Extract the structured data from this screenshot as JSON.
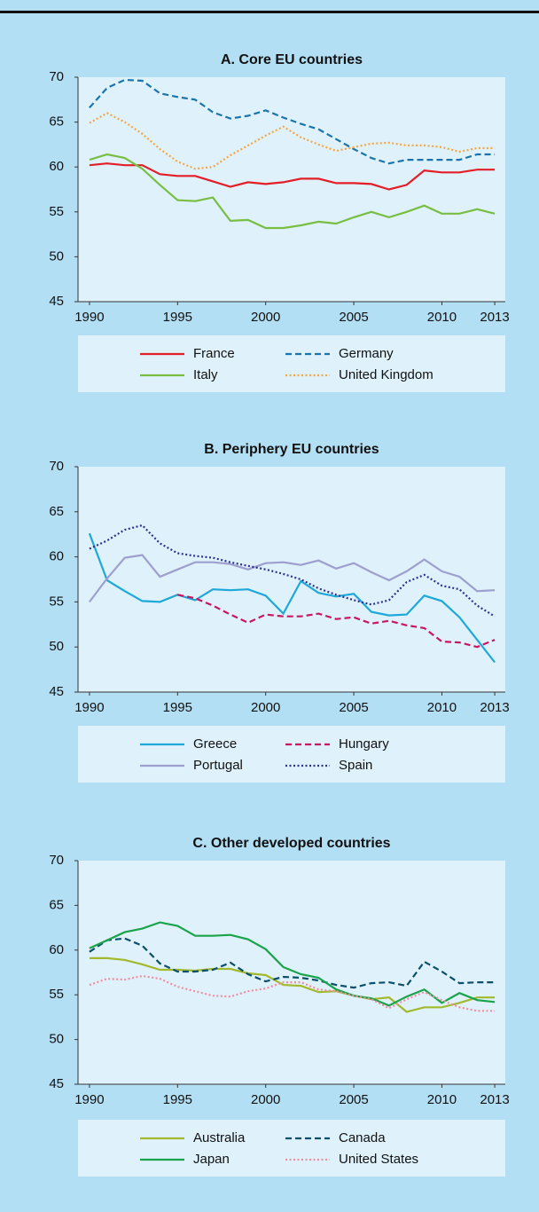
{
  "chart_data": [
    {
      "type": "line",
      "title": "A. Core EU countries",
      "x": [
        1990,
        1991,
        1992,
        1993,
        1994,
        1995,
        1996,
        1997,
        1998,
        1999,
        2000,
        2001,
        2002,
        2003,
        2004,
        2005,
        2006,
        2007,
        2008,
        2009,
        2010,
        2011,
        2012,
        2013
      ],
      "xlim": [
        1989.35,
        2013.6
      ],
      "xticks": [
        1990,
        1995,
        2000,
        2005,
        2010,
        2013
      ],
      "ylim": [
        45,
        70
      ],
      "yticks": [
        45,
        50,
        55,
        60,
        65,
        70
      ],
      "series": [
        {
          "name": "France",
          "color": "#e31e26",
          "dash": "solid",
          "values": [
            60.2,
            60.4,
            60.2,
            60.2,
            59.2,
            59.0,
            59.0,
            58.4,
            57.8,
            58.3,
            58.1,
            58.3,
            58.7,
            58.7,
            58.2,
            58.2,
            58.1,
            57.5,
            58.0,
            59.6,
            59.4,
            59.4,
            59.7,
            59.7
          ]
        },
        {
          "name": "Germany",
          "color": "#1b75ac",
          "dash": "dashed",
          "values": [
            66.6,
            68.8,
            69.7,
            69.6,
            68.2,
            67.8,
            67.5,
            66.1,
            65.4,
            65.7,
            66.3,
            65.5,
            64.8,
            64.2,
            63.1,
            62.0,
            61.0,
            60.4,
            60.8,
            60.8,
            60.8,
            60.8,
            61.4,
            61.4
          ]
        },
        {
          "name": "Italy",
          "color": "#78be43",
          "dash": "solid",
          "values": [
            60.8,
            61.4,
            61.0,
            59.8,
            58.0,
            56.3,
            56.2,
            56.6,
            54.0,
            54.1,
            53.2,
            53.2,
            53.5,
            53.9,
            53.7,
            54.4,
            55.0,
            54.4,
            55.0,
            55.7,
            54.8,
            54.8,
            55.3,
            54.8
          ]
        },
        {
          "name": "United Kingdom",
          "color": "#f7a541",
          "dash": "dotted",
          "values": [
            64.9,
            66.0,
            65.0,
            63.7,
            62.0,
            60.6,
            59.8,
            60.0,
            61.3,
            62.4,
            63.5,
            64.5,
            63.3,
            62.5,
            61.8,
            62.2,
            62.6,
            62.7,
            62.4,
            62.4,
            62.2,
            61.7,
            62.1,
            62.1
          ]
        }
      ]
    },
    {
      "type": "line",
      "title": "B. Periphery EU countries",
      "x": [
        1990,
        1991,
        1992,
        1993,
        1994,
        1995,
        1996,
        1997,
        1998,
        1999,
        2000,
        2001,
        2002,
        2003,
        2004,
        2005,
        2006,
        2007,
        2008,
        2009,
        2010,
        2011,
        2012,
        2013
      ],
      "xlim": [
        1989.35,
        2013.6
      ],
      "xticks": [
        1990,
        1995,
        2000,
        2005,
        2010,
        2013
      ],
      "ylim": [
        45,
        70
      ],
      "yticks": [
        45,
        50,
        55,
        60,
        65,
        70
      ],
      "series": [
        {
          "name": "Greece",
          "color": "#1ea7d9",
          "dash": "solid",
          "values": [
            62.6,
            57.4,
            56.2,
            55.1,
            55.0,
            55.8,
            55.2,
            56.4,
            56.3,
            56.4,
            55.7,
            53.7,
            57.3,
            56.0,
            55.6,
            55.9,
            53.9,
            53.5,
            53.6,
            55.7,
            55.1,
            53.3,
            50.8,
            48.3
          ]
        },
        {
          "name": "Hungary",
          "color": "#c8175f",
          "dash": "dashed",
          "values": [
            null,
            null,
            null,
            null,
            null,
            55.8,
            55.4,
            54.6,
            53.6,
            52.7,
            53.6,
            53.4,
            53.4,
            53.7,
            53.1,
            53.3,
            52.6,
            52.9,
            52.4,
            52.1,
            50.6,
            50.5,
            50.0,
            50.8
          ]
        },
        {
          "name": "Portugal",
          "color": "#9d9fce",
          "dash": "solid",
          "values": [
            55.0,
            57.6,
            59.9,
            60.2,
            57.8,
            58.6,
            59.4,
            59.4,
            59.2,
            58.6,
            59.3,
            59.4,
            59.1,
            59.6,
            58.7,
            59.3,
            58.3,
            57.4,
            58.4,
            59.7,
            58.4,
            57.8,
            56.2,
            56.3
          ]
        },
        {
          "name": "Spain",
          "color": "#2e3192",
          "dash": "dotted",
          "values": [
            60.9,
            61.8,
            63.0,
            63.5,
            61.5,
            60.4,
            60.1,
            59.9,
            59.4,
            59.0,
            58.6,
            58.1,
            57.5,
            56.5,
            55.8,
            55.2,
            54.7,
            55.2,
            57.2,
            58.0,
            56.8,
            56.4,
            54.6,
            53.4
          ]
        }
      ]
    },
    {
      "type": "line",
      "title": "C. Other developed countries",
      "x": [
        1990,
        1991,
        1992,
        1993,
        1994,
        1995,
        1996,
        1997,
        1998,
        1999,
        2000,
        2001,
        2002,
        2003,
        2004,
        2005,
        2006,
        2007,
        2008,
        2009,
        2010,
        2011,
        2012,
        2013
      ],
      "xlim": [
        1989.35,
        2013.6
      ],
      "xticks": [
        1990,
        1995,
        2000,
        2005,
        2010,
        2013
      ],
      "ylim": [
        45,
        70
      ],
      "yticks": [
        45,
        50,
        55,
        60,
        65,
        70
      ],
      "series": [
        {
          "name": "Australia",
          "color": "#a3b92d",
          "dash": "solid",
          "values": [
            59.1,
            59.1,
            58.9,
            58.4,
            57.8,
            57.8,
            57.7,
            57.9,
            57.9,
            57.4,
            57.2,
            56.1,
            56.0,
            55.3,
            55.4,
            54.9,
            54.5,
            54.7,
            53.1,
            53.6,
            53.6,
            54.1,
            54.7,
            54.7
          ]
        },
        {
          "name": "Canada",
          "color": "#0b4f6c",
          "dash": "dashed",
          "values": [
            59.8,
            61.1,
            61.3,
            60.5,
            58.5,
            57.6,
            57.6,
            57.8,
            58.6,
            57.3,
            56.5,
            57.0,
            56.9,
            56.6,
            56.1,
            55.8,
            56.3,
            56.4,
            56.0,
            58.7,
            57.6,
            56.3,
            56.4,
            56.4
          ]
        },
        {
          "name": "Japan",
          "color": "#1aa34a",
          "dash": "solid",
          "values": [
            60.2,
            61.1,
            62.0,
            62.4,
            63.1,
            62.7,
            61.6,
            61.6,
            61.7,
            61.2,
            60.1,
            58.1,
            57.3,
            56.9,
            55.6,
            54.9,
            54.6,
            53.8,
            54.8,
            55.6,
            54.1,
            55.2,
            54.4,
            54.2
          ]
        },
        {
          "name": "United States",
          "color": "#f28ca0",
          "dash": "dotted",
          "values": [
            56.1,
            56.8,
            56.7,
            57.1,
            56.8,
            55.9,
            55.4,
            54.9,
            54.8,
            55.4,
            55.7,
            56.4,
            56.4,
            55.6,
            55.4,
            54.9,
            54.5,
            53.5,
            54.5,
            55.3,
            54.4,
            53.6,
            53.2,
            53.2
          ]
        }
      ]
    }
  ]
}
